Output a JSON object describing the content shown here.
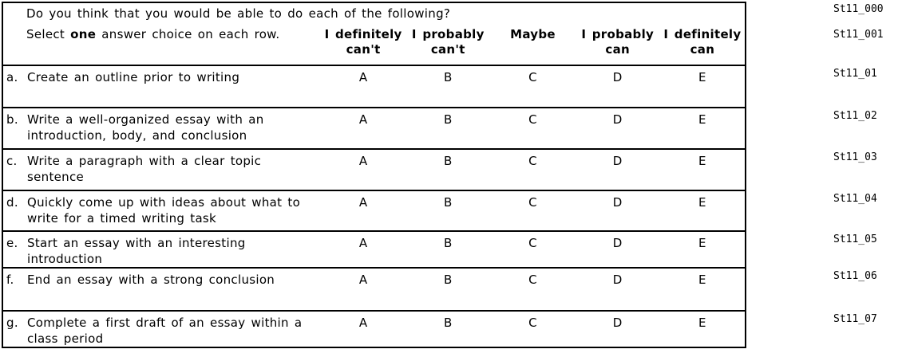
{
  "colors": {
    "text": "#000000",
    "border": "#000000",
    "background": "#ffffff"
  },
  "table": {
    "question": "Do you think that you would be able to do each of the following?",
    "question_code": "St11_000",
    "instruction_prefix": "Select ",
    "instruction_bold": "one",
    "instruction_suffix": " answer choice on each row.",
    "instruction_code": "St11_001",
    "columns": [
      {
        "line1": "I definitely",
        "line2": "can't"
      },
      {
        "line1": "I probably",
        "line2": "can't"
      },
      {
        "line1": "Maybe",
        "line2": ""
      },
      {
        "line1": "I probably",
        "line2": "can"
      },
      {
        "line1": "I definitely",
        "line2": "can"
      }
    ],
    "options": [
      "A",
      "B",
      "C",
      "D",
      "E"
    ],
    "rows": [
      {
        "label": "a.",
        "text": "Create an outline prior to writing",
        "code": "St11_01"
      },
      {
        "label": "b.",
        "text": "Write a well-organized essay with an\nintroduction, body, and conclusion",
        "code": "St11_02"
      },
      {
        "label": "c.",
        "text": "Write a paragraph with a clear topic sentence",
        "code": "St11_03"
      },
      {
        "label": "d.",
        "text": "Quickly come up with ideas about what to\nwrite for a timed writing task",
        "code": "St11_04"
      },
      {
        "label": "e.",
        "text": "Start an essay with an interesting\nintroduction",
        "code": "St11_05"
      },
      {
        "label": "f.",
        "text": "End an essay with a strong conclusion",
        "code": "St11_06"
      },
      {
        "label": "g.",
        "text": "Complete a first draft of an essay within a\nclass period",
        "code": "St11_07"
      }
    ]
  }
}
